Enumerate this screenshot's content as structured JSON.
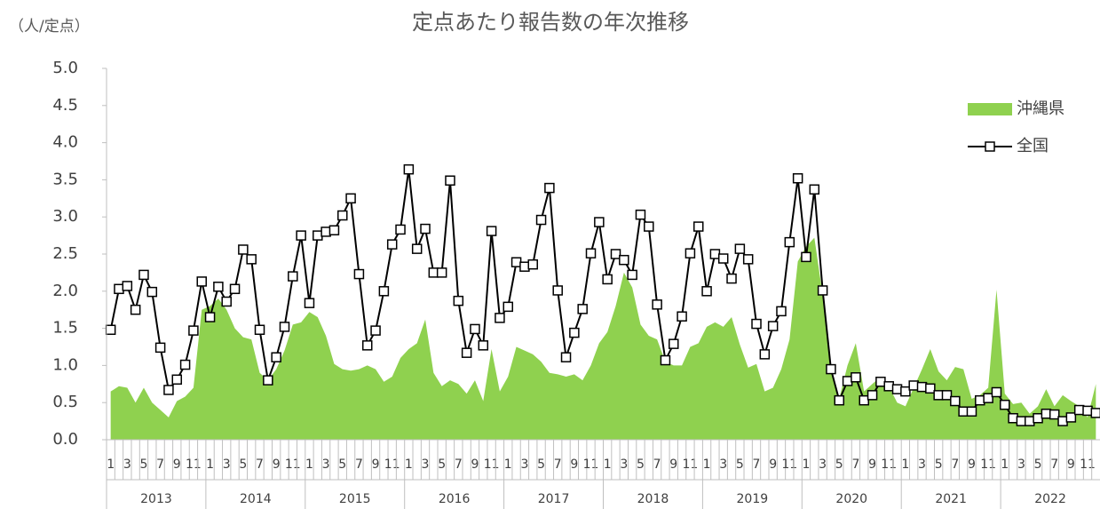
{
  "chart_data": {
    "type": "line",
    "title": "定点あたり報告数の年次推移",
    "y_unit": "（人/定点）",
    "categories": [
      "1",
      null,
      "3",
      null,
      "5",
      null,
      "7",
      null,
      "9",
      null,
      "11",
      null,
      "1",
      null,
      "3",
      null,
      "5",
      null,
      "7",
      null,
      "9",
      null,
      "11",
      null,
      "1",
      null,
      "3",
      null,
      "5",
      null,
      "7",
      null,
      "9",
      null,
      "11",
      null,
      "1",
      null,
      "3",
      null,
      "5",
      null,
      "7",
      null,
      "9",
      null,
      "11",
      null,
      "1",
      null,
      "3",
      null,
      "5",
      null,
      "7",
      null,
      "9",
      null,
      "11",
      null,
      "1",
      null,
      "3",
      null,
      "5",
      null,
      "7",
      null,
      "9",
      null,
      "11",
      null,
      "1",
      null,
      "3",
      null,
      "5",
      null,
      "7",
      null,
      "9",
      null,
      "11",
      null,
      "1",
      null,
      "3",
      null,
      "5",
      null,
      "7",
      null,
      "9",
      null,
      "11",
      null,
      "1",
      null,
      "3",
      null,
      "5",
      null,
      "7",
      null,
      "9",
      null,
      "11",
      null,
      "1",
      null,
      "3",
      null,
      "5",
      null,
      "7",
      null,
      "9",
      null,
      "11",
      null
    ],
    "years": [
      "2013",
      "2014",
      "2015",
      "2016",
      "2017",
      "2018",
      "2019",
      "2020",
      "2021",
      "2022"
    ],
    "series": [
      {
        "name": "沖縄県",
        "type": "area",
        "color": "#8fd14f",
        "values": [
          0.65,
          0.72,
          0.7,
          0.5,
          0.7,
          0.5,
          0.4,
          0.3,
          0.52,
          0.58,
          0.7,
          1.75,
          1.8,
          1.9,
          1.75,
          1.5,
          1.38,
          1.35,
          0.9,
          0.8,
          0.95,
          1.2,
          1.55,
          1.58,
          1.72,
          1.65,
          1.4,
          1.02,
          0.95,
          0.93,
          0.95,
          1.0,
          0.95,
          0.78,
          0.85,
          1.1,
          1.22,
          1.3,
          1.62,
          0.9,
          0.72,
          0.8,
          0.75,
          0.62,
          0.8,
          0.52,
          1.22,
          0.65,
          0.85,
          1.25,
          1.2,
          1.15,
          1.05,
          0.9,
          0.88,
          0.85,
          0.88,
          0.8,
          1.0,
          1.3,
          1.45,
          1.8,
          2.25,
          2.05,
          1.55,
          1.4,
          1.35,
          1.05,
          1.0,
          1.0,
          1.25,
          1.3,
          1.52,
          1.58,
          1.52,
          1.65,
          1.28,
          0.97,
          1.02,
          0.65,
          0.7,
          0.95,
          1.35,
          2.4,
          2.6,
          2.72,
          1.95,
          0.95,
          0.55,
          1.0,
          1.3,
          0.65,
          0.75,
          0.85,
          0.72,
          0.5,
          0.45,
          0.7,
          0.95,
          1.22,
          0.92,
          0.8,
          0.98,
          0.95,
          0.55,
          0.6,
          0.7,
          2.02,
          0.62,
          0.48,
          0.5,
          0.35,
          0.45,
          0.68,
          0.45,
          0.6,
          0.52,
          0.45,
          0.3,
          0.75
        ]
      },
      {
        "name": "全国",
        "type": "line",
        "color": "#000000",
        "values": [
          1.48,
          2.03,
          2.07,
          1.75,
          2.22,
          1.99,
          1.24,
          0.67,
          0.81,
          1.01,
          1.47,
          2.13,
          1.65,
          2.06,
          1.86,
          2.03,
          2.56,
          2.43,
          1.48,
          0.8,
          1.11,
          1.52,
          2.2,
          2.75,
          1.84,
          2.75,
          2.8,
          2.82,
          3.02,
          3.25,
          2.23,
          1.27,
          1.47,
          2.0,
          2.63,
          2.83,
          3.64,
          2.57,
          2.84,
          2.25,
          2.25,
          3.49,
          1.87,
          1.17,
          1.49,
          1.27,
          2.81,
          1.64,
          1.79,
          2.39,
          2.33,
          2.36,
          2.96,
          3.39,
          2.01,
          1.11,
          1.44,
          1.76,
          2.51,
          2.93,
          2.16,
          2.5,
          2.42,
          2.22,
          3.03,
          2.87,
          1.82,
          1.07,
          1.29,
          1.66,
          2.51,
          2.87,
          2.0,
          2.5,
          2.44,
          2.17,
          2.57,
          2.43,
          1.56,
          1.15,
          1.53,
          1.73,
          2.66,
          3.52,
          2.46,
          3.37,
          2.01,
          0.95,
          0.53,
          0.79,
          0.84,
          0.53,
          0.6,
          0.78,
          0.72,
          0.68,
          0.65,
          0.73,
          0.71,
          0.69,
          0.6,
          0.6,
          0.52,
          0.38,
          0.38,
          0.53,
          0.56,
          0.64,
          0.47,
          0.29,
          0.25,
          0.25,
          0.29,
          0.35,
          0.34,
          0.25,
          0.3,
          0.4,
          0.39,
          0.36
        ]
      }
    ],
    "ylim": [
      0,
      5
    ],
    "yticks": [
      {
        "value": 0,
        "label": "0.0"
      },
      0.5,
      {
        "value": 1,
        "label": "1.0"
      },
      1.5,
      {
        "value": 2,
        "label": "2.0"
      },
      2.5,
      {
        "value": 3,
        "label": "3.0"
      },
      3.5,
      {
        "value": 4,
        "label": "4.0"
      },
      4.5,
      {
        "value": 5,
        "label": "5.0"
      }
    ],
    "grid": false,
    "legend": "upper right"
  }
}
